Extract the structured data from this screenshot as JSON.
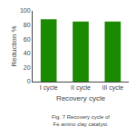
{
  "chart_data": {
    "type": "bar",
    "categories": [
      "I cycle",
      "II cycle",
      "III cycle"
    ],
    "values": [
      88,
      85,
      85
    ],
    "color": "#1a8a00",
    "xlabel": "Recovery cycle",
    "ylabel": "Reduction %",
    "ylim": [
      0,
      100
    ],
    "yticks": [
      0,
      20,
      40,
      60,
      80,
      100
    ],
    "grid": false,
    "annotations": [
      "Fig. 7 Recovery cycle of Fe amino clay catalyst."
    ]
  }
}
